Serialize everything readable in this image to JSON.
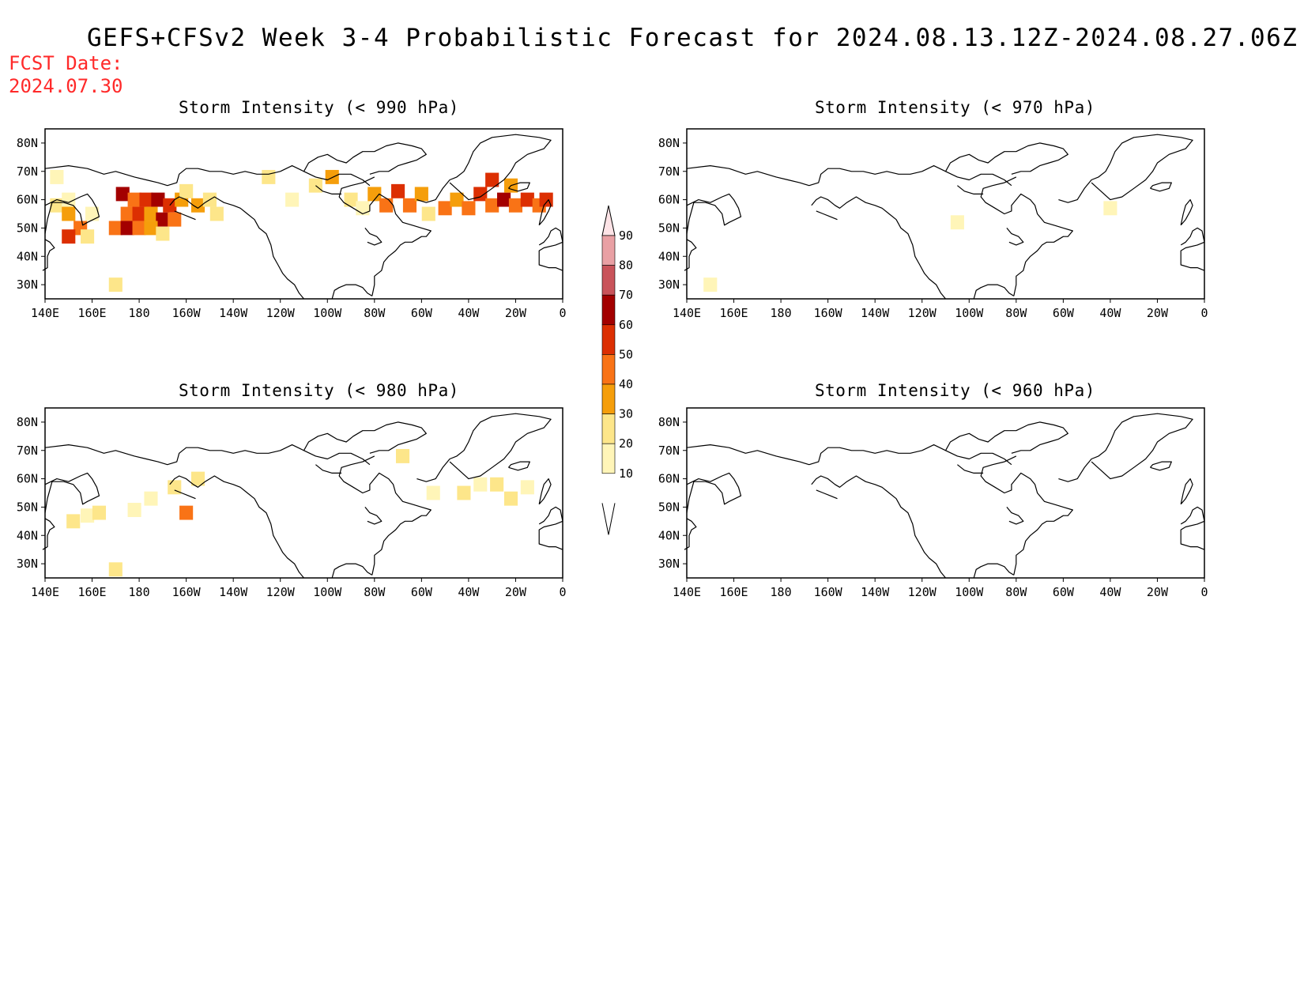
{
  "title": "GEFS+CFSv2 Week 3-4 Probabilistic Forecast for 2024.08.13.12Z-2024.08.27.06Z",
  "fcst_date_label": "FCST Date:",
  "fcst_date": "2024.07.30",
  "lat_ticks": [
    "80N",
    "70N",
    "60N",
    "50N",
    "40N",
    "30N"
  ],
  "lon_ticks": [
    "140E",
    "160E",
    "180",
    "160W",
    "140W",
    "120W",
    "100W",
    "80W",
    "60W",
    "40W",
    "20W",
    "0"
  ],
  "colorbar": {
    "levels": [
      "10",
      "20",
      "30",
      "40",
      "50",
      "60",
      "70",
      "80",
      "90"
    ],
    "colors": [
      "#fff5b8",
      "#fde68a",
      "#f59e0b",
      "#f97316",
      "#dc2f02",
      "#a30000",
      "#c9535a",
      "#e9a0a4",
      "#fbdde0"
    ]
  },
  "panels": [
    {
      "title": "Storm Intensity (< 990 hPa)",
      "cells": [
        {
          "lon": 145,
          "lat": 58,
          "v": 20
        },
        {
          "lon": 150,
          "lat": 60,
          "v": 10
        },
        {
          "lon": 150,
          "lat": 55,
          "v": 30
        },
        {
          "lon": 155,
          "lat": 50,
          "v": 40
        },
        {
          "lon": 150,
          "lat": 47,
          "v": 50
        },
        {
          "lon": 158,
          "lat": 47,
          "v": 20
        },
        {
          "lon": 160,
          "lat": 55,
          "v": 10
        },
        {
          "lon": 145,
          "lat": 68,
          "v": 10
        },
        {
          "lon": 173,
          "lat": 62,
          "v": 60
        },
        {
          "lon": 178,
          "lat": 60,
          "v": 40
        },
        {
          "lon": 183,
          "lat": 60,
          "v": 50
        },
        {
          "lon": 188,
          "lat": 60,
          "v": 60
        },
        {
          "lon": 193,
          "lat": 58,
          "v": 50
        },
        {
          "lon": 198,
          "lat": 60,
          "v": 30
        },
        {
          "lon": 175,
          "lat": 55,
          "v": 40
        },
        {
          "lon": 180,
          "lat": 55,
          "v": 50
        },
        {
          "lon": 185,
          "lat": 55,
          "v": 30
        },
        {
          "lon": 190,
          "lat": 53,
          "v": 60
        },
        {
          "lon": 195,
          "lat": 53,
          "v": 40
        },
        {
          "lon": 170,
          "lat": 50,
          "v": 40
        },
        {
          "lon": 175,
          "lat": 50,
          "v": 60
        },
        {
          "lon": 180,
          "lat": 50,
          "v": 40
        },
        {
          "lon": 185,
          "lat": 50,
          "v": 30
        },
        {
          "lon": 190,
          "lat": 48,
          "v": 20
        },
        {
          "lon": 200,
          "lat": 63,
          "v": 20
        },
        {
          "lon": 205,
          "lat": 58,
          "v": 30
        },
        {
          "lon": 210,
          "lat": 60,
          "v": 20
        },
        {
          "lon": 213,
          "lat": 55,
          "v": 20
        },
        {
          "lon": 235,
          "lat": 68,
          "v": 20
        },
        {
          "lon": 245,
          "lat": 60,
          "v": 10
        },
        {
          "lon": 255,
          "lat": 65,
          "v": 20
        },
        {
          "lon": 262,
          "lat": 68,
          "v": 30
        },
        {
          "lon": 270,
          "lat": 60,
          "v": 20
        },
        {
          "lon": 275,
          "lat": 57,
          "v": 10
        },
        {
          "lon": 280,
          "lat": 62,
          "v": 30
        },
        {
          "lon": 285,
          "lat": 58,
          "v": 40
        },
        {
          "lon": 290,
          "lat": 63,
          "v": 50
        },
        {
          "lon": 295,
          "lat": 58,
          "v": 40
        },
        {
          "lon": 300,
          "lat": 62,
          "v": 30
        },
        {
          "lon": 303,
          "lat": 55,
          "v": 20
        },
        {
          "lon": 310,
          "lat": 57,
          "v": 40
        },
        {
          "lon": 315,
          "lat": 60,
          "v": 30
        },
        {
          "lon": 320,
          "lat": 57,
          "v": 40
        },
        {
          "lon": 325,
          "lat": 62,
          "v": 50
        },
        {
          "lon": 330,
          "lat": 58,
          "v": 40
        },
        {
          "lon": 335,
          "lat": 60,
          "v": 60
        },
        {
          "lon": 340,
          "lat": 58,
          "v": 40
        },
        {
          "lon": 345,
          "lat": 60,
          "v": 50
        },
        {
          "lon": 350,
          "lat": 58,
          "v": 40
        },
        {
          "lon": 353,
          "lat": 60,
          "v": 50
        },
        {
          "lon": 330,
          "lat": 67,
          "v": 50
        },
        {
          "lon": 338,
          "lat": 65,
          "v": 30
        },
        {
          "lon": 170,
          "lat": 30,
          "v": 20
        }
      ]
    },
    {
      "title": "Storm Intensity (< 980 hPa)",
      "cells": [
        {
          "lon": 152,
          "lat": 45,
          "v": 20
        },
        {
          "lon": 158,
          "lat": 47,
          "v": 10
        },
        {
          "lon": 163,
          "lat": 48,
          "v": 20
        },
        {
          "lon": 185,
          "lat": 53,
          "v": 10
        },
        {
          "lon": 178,
          "lat": 49,
          "v": 10
        },
        {
          "lon": 195,
          "lat": 57,
          "v": 20
        },
        {
          "lon": 205,
          "lat": 60,
          "v": 20
        },
        {
          "lon": 200,
          "lat": 48,
          "v": 40
        },
        {
          "lon": 292,
          "lat": 68,
          "v": 20
        },
        {
          "lon": 305,
          "lat": 55,
          "v": 10
        },
        {
          "lon": 318,
          "lat": 55,
          "v": 20
        },
        {
          "lon": 325,
          "lat": 58,
          "v": 10
        },
        {
          "lon": 332,
          "lat": 58,
          "v": 20
        },
        {
          "lon": 338,
          "lat": 53,
          "v": 20
        },
        {
          "lon": 345,
          "lat": 57,
          "v": 10
        },
        {
          "lon": 170,
          "lat": 28,
          "v": 20
        }
      ]
    },
    {
      "title": "Storm Intensity (< 970 hPa)",
      "cells": [
        {
          "lon": 255,
          "lat": 52,
          "v": 10
        },
        {
          "lon": 320,
          "lat": 57,
          "v": 10
        },
        {
          "lon": 150,
          "lat": 30,
          "v": 10
        }
      ]
    },
    {
      "title": "Storm Intensity (< 960 hPa)",
      "cells": []
    }
  ]
}
